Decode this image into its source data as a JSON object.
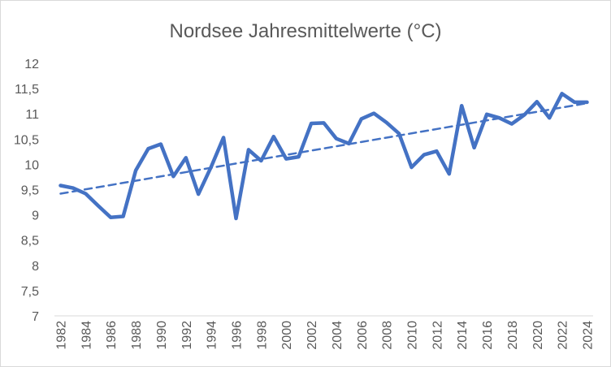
{
  "chart_data": {
    "type": "line",
    "title": "Nordsee Jahresmittelwerte (°C)",
    "xlabel": "",
    "ylabel": "",
    "ylim": [
      7,
      12
    ],
    "ytick_labels": [
      "7",
      "7,5",
      "8",
      "8,5",
      "9",
      "9,5",
      "10",
      "10,5",
      "11",
      "11,5",
      "12"
    ],
    "xtick_labels": [
      "1982",
      "1984",
      "1986",
      "1988",
      "1990",
      "1992",
      "1994",
      "1996",
      "1998",
      "2000",
      "2002",
      "2004",
      "2006",
      "2008",
      "2010",
      "2012",
      "2014",
      "2016",
      "2018",
      "2020",
      "2022",
      "2024"
    ],
    "grid": false,
    "legend": "none",
    "colors": {
      "series": "#4472c4",
      "text": "#595959",
      "axis": "#d9d9d9"
    },
    "series": [
      {
        "style": "solid",
        "x": [
          1982,
          1983,
          1984,
          1985,
          1986,
          1987,
          1988,
          1989,
          1990,
          1991,
          1992,
          1993,
          1994,
          1995,
          1996,
          1997,
          1998,
          1999,
          2000,
          2001,
          2002,
          2003,
          2004,
          2005,
          2006,
          2007,
          2008,
          2009,
          2010,
          2011,
          2012,
          2013,
          2014,
          2015,
          2016,
          2017,
          2018,
          2019,
          2020,
          2021,
          2022,
          2023,
          2024
        ],
        "values": [
          9.58,
          9.53,
          9.42,
          9.18,
          8.95,
          8.97,
          9.88,
          10.31,
          10.4,
          9.76,
          10.13,
          9.41,
          9.94,
          10.53,
          8.93,
          10.29,
          10.07,
          10.55,
          10.11,
          10.15,
          10.81,
          10.82,
          10.51,
          10.41,
          10.9,
          11.01,
          10.83,
          10.61,
          9.94,
          10.19,
          10.26,
          9.81,
          11.16,
          10.33,
          10.99,
          10.92,
          10.8,
          10.98,
          11.24,
          10.92,
          11.4,
          11.23,
          11.23
        ]
      },
      {
        "style": "dashed",
        "x": [
          1982,
          2024
        ],
        "values": [
          9.42,
          11.21
        ]
      }
    ]
  }
}
